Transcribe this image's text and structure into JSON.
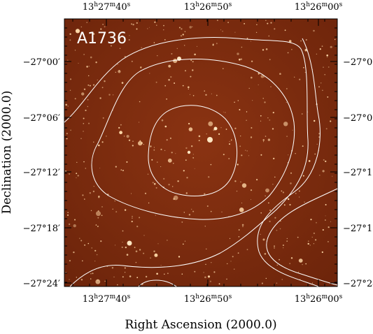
{
  "figure": {
    "cluster_label": "A1736",
    "x_axis_title": "Right Ascension (2000.0)",
    "y_axis_title": "Declination (2000.0)",
    "ra_ticks": [
      {
        "h": "13",
        "hsup": "h",
        "m": "27",
        "msup": "m",
        "s": "40",
        "ssup": "s"
      },
      {
        "h": "13",
        "hsup": "h",
        "m": "26",
        "msup": "m",
        "s": "50",
        "ssup": "s"
      },
      {
        "h": "13",
        "hsup": "h",
        "m": "26",
        "msup": "m",
        "s": "00",
        "ssup": "s"
      }
    ],
    "dec_ticks": [
      {
        "deg": "−27°",
        "min": "00"
      },
      {
        "deg": "−27°",
        "min": "06"
      },
      {
        "deg": "−27°",
        "min": "12"
      },
      {
        "deg": "−27°",
        "min": "18"
      },
      {
        "deg": "−27°",
        "min": "24"
      }
    ],
    "colors": {
      "image_background": "#7a2a0c",
      "contour": "#ffffff",
      "star": "#ffd9a8"
    }
  }
}
